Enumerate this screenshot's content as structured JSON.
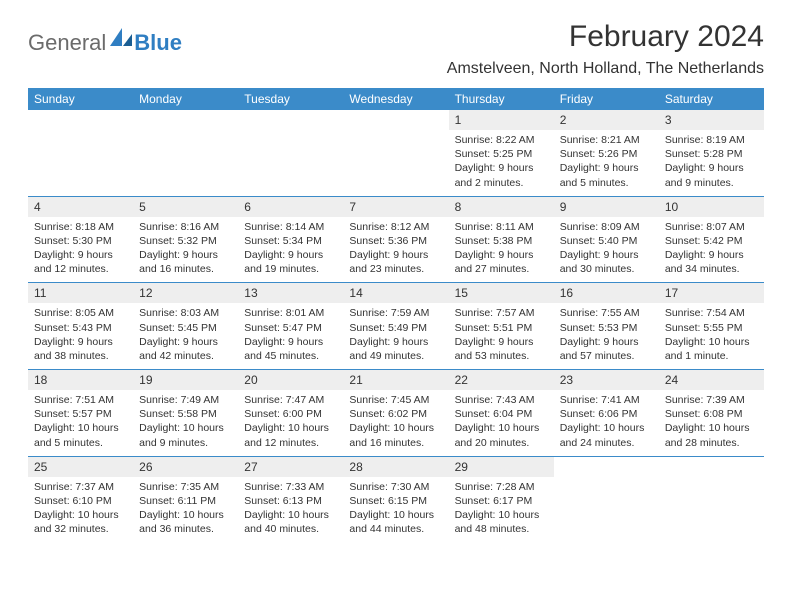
{
  "logo": {
    "general": "General",
    "blue": "Blue"
  },
  "title": "February 2024",
  "location": "Amstelveen, North Holland, The Netherlands",
  "day_headers": [
    "Sunday",
    "Monday",
    "Tuesday",
    "Wednesday",
    "Thursday",
    "Friday",
    "Saturday"
  ],
  "colors": {
    "header_bg": "#3b8bc9",
    "header_text": "#ffffff",
    "daynum_bg": "#eeeeee",
    "text": "#333333",
    "rule": "#3b8bc9",
    "logo_gray": "#6b6b6b",
    "logo_blue": "#2f7ec2"
  },
  "typography": {
    "title_fontsize": 30,
    "location_fontsize": 16,
    "dayheader_fontsize": 12,
    "daynum_fontsize": 12,
    "body_fontsize": 10.5
  },
  "weeks": [
    [
      null,
      null,
      null,
      null,
      {
        "n": "1",
        "sr": "Sunrise: 8:22 AM",
        "ss": "Sunset: 5:25 PM",
        "d1": "Daylight: 9 hours",
        "d2": "and 2 minutes."
      },
      {
        "n": "2",
        "sr": "Sunrise: 8:21 AM",
        "ss": "Sunset: 5:26 PM",
        "d1": "Daylight: 9 hours",
        "d2": "and 5 minutes."
      },
      {
        "n": "3",
        "sr": "Sunrise: 8:19 AM",
        "ss": "Sunset: 5:28 PM",
        "d1": "Daylight: 9 hours",
        "d2": "and 9 minutes."
      }
    ],
    [
      {
        "n": "4",
        "sr": "Sunrise: 8:18 AM",
        "ss": "Sunset: 5:30 PM",
        "d1": "Daylight: 9 hours",
        "d2": "and 12 minutes."
      },
      {
        "n": "5",
        "sr": "Sunrise: 8:16 AM",
        "ss": "Sunset: 5:32 PM",
        "d1": "Daylight: 9 hours",
        "d2": "and 16 minutes."
      },
      {
        "n": "6",
        "sr": "Sunrise: 8:14 AM",
        "ss": "Sunset: 5:34 PM",
        "d1": "Daylight: 9 hours",
        "d2": "and 19 minutes."
      },
      {
        "n": "7",
        "sr": "Sunrise: 8:12 AM",
        "ss": "Sunset: 5:36 PM",
        "d1": "Daylight: 9 hours",
        "d2": "and 23 minutes."
      },
      {
        "n": "8",
        "sr": "Sunrise: 8:11 AM",
        "ss": "Sunset: 5:38 PM",
        "d1": "Daylight: 9 hours",
        "d2": "and 27 minutes."
      },
      {
        "n": "9",
        "sr": "Sunrise: 8:09 AM",
        "ss": "Sunset: 5:40 PM",
        "d1": "Daylight: 9 hours",
        "d2": "and 30 minutes."
      },
      {
        "n": "10",
        "sr": "Sunrise: 8:07 AM",
        "ss": "Sunset: 5:42 PM",
        "d1": "Daylight: 9 hours",
        "d2": "and 34 minutes."
      }
    ],
    [
      {
        "n": "11",
        "sr": "Sunrise: 8:05 AM",
        "ss": "Sunset: 5:43 PM",
        "d1": "Daylight: 9 hours",
        "d2": "and 38 minutes."
      },
      {
        "n": "12",
        "sr": "Sunrise: 8:03 AM",
        "ss": "Sunset: 5:45 PM",
        "d1": "Daylight: 9 hours",
        "d2": "and 42 minutes."
      },
      {
        "n": "13",
        "sr": "Sunrise: 8:01 AM",
        "ss": "Sunset: 5:47 PM",
        "d1": "Daylight: 9 hours",
        "d2": "and 45 minutes."
      },
      {
        "n": "14",
        "sr": "Sunrise: 7:59 AM",
        "ss": "Sunset: 5:49 PM",
        "d1": "Daylight: 9 hours",
        "d2": "and 49 minutes."
      },
      {
        "n": "15",
        "sr": "Sunrise: 7:57 AM",
        "ss": "Sunset: 5:51 PM",
        "d1": "Daylight: 9 hours",
        "d2": "and 53 minutes."
      },
      {
        "n": "16",
        "sr": "Sunrise: 7:55 AM",
        "ss": "Sunset: 5:53 PM",
        "d1": "Daylight: 9 hours",
        "d2": "and 57 minutes."
      },
      {
        "n": "17",
        "sr": "Sunrise: 7:54 AM",
        "ss": "Sunset: 5:55 PM",
        "d1": "Daylight: 10 hours",
        "d2": "and 1 minute."
      }
    ],
    [
      {
        "n": "18",
        "sr": "Sunrise: 7:51 AM",
        "ss": "Sunset: 5:57 PM",
        "d1": "Daylight: 10 hours",
        "d2": "and 5 minutes."
      },
      {
        "n": "19",
        "sr": "Sunrise: 7:49 AM",
        "ss": "Sunset: 5:58 PM",
        "d1": "Daylight: 10 hours",
        "d2": "and 9 minutes."
      },
      {
        "n": "20",
        "sr": "Sunrise: 7:47 AM",
        "ss": "Sunset: 6:00 PM",
        "d1": "Daylight: 10 hours",
        "d2": "and 12 minutes."
      },
      {
        "n": "21",
        "sr": "Sunrise: 7:45 AM",
        "ss": "Sunset: 6:02 PM",
        "d1": "Daylight: 10 hours",
        "d2": "and 16 minutes."
      },
      {
        "n": "22",
        "sr": "Sunrise: 7:43 AM",
        "ss": "Sunset: 6:04 PM",
        "d1": "Daylight: 10 hours",
        "d2": "and 20 minutes."
      },
      {
        "n": "23",
        "sr": "Sunrise: 7:41 AM",
        "ss": "Sunset: 6:06 PM",
        "d1": "Daylight: 10 hours",
        "d2": "and 24 minutes."
      },
      {
        "n": "24",
        "sr": "Sunrise: 7:39 AM",
        "ss": "Sunset: 6:08 PM",
        "d1": "Daylight: 10 hours",
        "d2": "and 28 minutes."
      }
    ],
    [
      {
        "n": "25",
        "sr": "Sunrise: 7:37 AM",
        "ss": "Sunset: 6:10 PM",
        "d1": "Daylight: 10 hours",
        "d2": "and 32 minutes."
      },
      {
        "n": "26",
        "sr": "Sunrise: 7:35 AM",
        "ss": "Sunset: 6:11 PM",
        "d1": "Daylight: 10 hours",
        "d2": "and 36 minutes."
      },
      {
        "n": "27",
        "sr": "Sunrise: 7:33 AM",
        "ss": "Sunset: 6:13 PM",
        "d1": "Daylight: 10 hours",
        "d2": "and 40 minutes."
      },
      {
        "n": "28",
        "sr": "Sunrise: 7:30 AM",
        "ss": "Sunset: 6:15 PM",
        "d1": "Daylight: 10 hours",
        "d2": "and 44 minutes."
      },
      {
        "n": "29",
        "sr": "Sunrise: 7:28 AM",
        "ss": "Sunset: 6:17 PM",
        "d1": "Daylight: 10 hours",
        "d2": "and 48 minutes."
      },
      null,
      null
    ]
  ]
}
